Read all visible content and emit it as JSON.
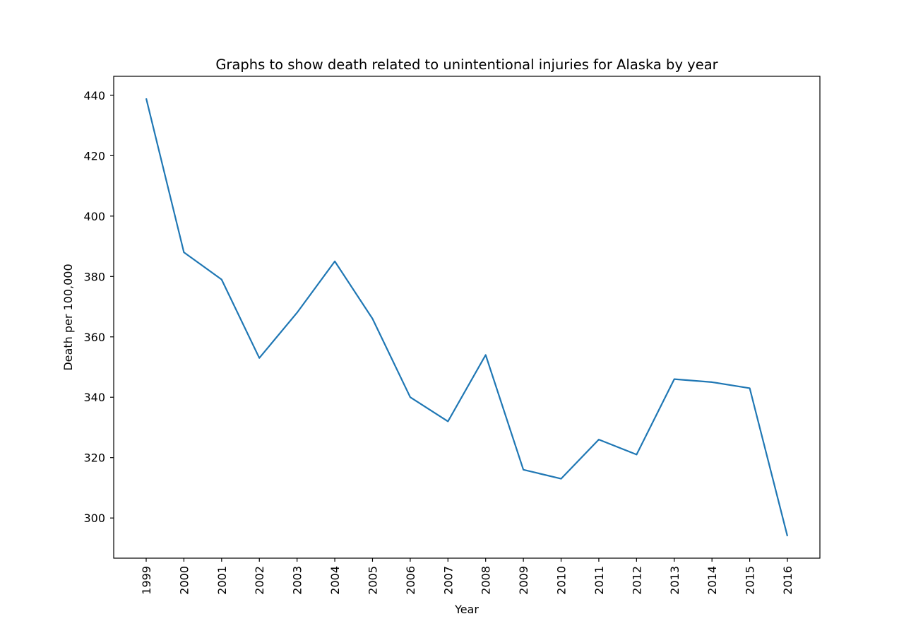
{
  "chart_data": {
    "type": "line",
    "title": "Graphs to show death related to unintentional injuries for Alaska by year",
    "xlabel": "Year",
    "ylabel": "Death per 100,000",
    "categories": [
      "1999",
      "2000",
      "2001",
      "2002",
      "2003",
      "2004",
      "2005",
      "2006",
      "2007",
      "2008",
      "2009",
      "2010",
      "2011",
      "2012",
      "2013",
      "2014",
      "2015",
      "2016"
    ],
    "series": [
      {
        "values": [
          439,
          388,
          379,
          353,
          368,
          385,
          366,
          340,
          332,
          354,
          316,
          313,
          326,
          321,
          346,
          345,
          343,
          294
        ]
      }
    ],
    "ylim": [
      286.7,
      446.3
    ],
    "yticks": [
      300,
      320,
      340,
      360,
      380,
      400,
      420,
      440
    ],
    "grid": false,
    "line_color": "#1f77b4"
  }
}
